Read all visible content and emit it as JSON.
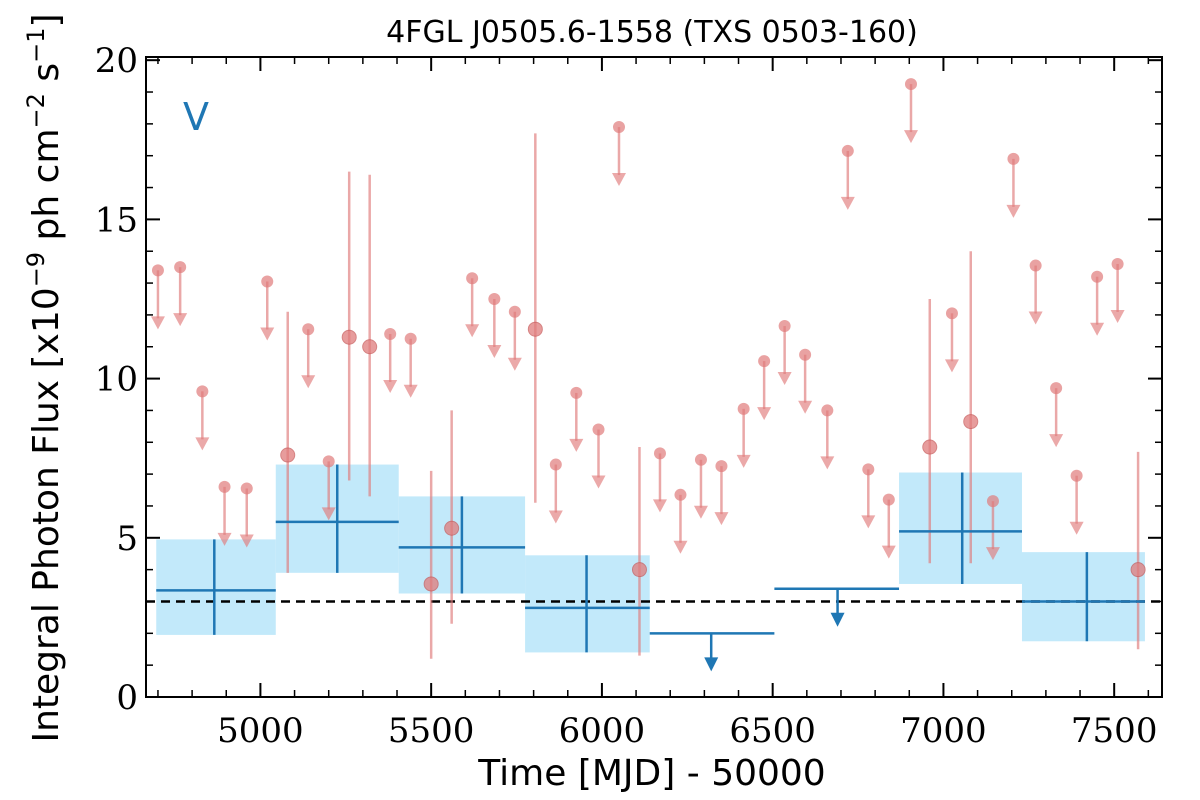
{
  "chart_data": {
    "type": "scatter",
    "title": "4FGL J0505.6-1558 (TXS 0503-160)",
    "xlabel": "Time [MJD] - 50000",
    "ylabel": "Integral Photon Flux [x10",
    "ylabel_exp": "−9",
    "ylabel_mid": " ph cm",
    "ylabel_exp2": "−2",
    "ylabel_mid2": " s",
    "ylabel_exp3": "−1",
    "ylabel_end": "]",
    "band_label": "V",
    "xlim": [
      4665,
      7640
    ],
    "ylim": [
      0,
      20.1
    ],
    "xticks": [
      5000,
      5500,
      6000,
      6500,
      7000,
      7500
    ],
    "yticks": [
      0,
      5,
      10,
      15,
      20
    ],
    "baseline": 3.0,
    "colors": {
      "monthly": "#e07b7b",
      "bin": "#1f77b4",
      "bin_fill": "#b3e3f9"
    },
    "series": [
      {
        "kind": "binned_detections",
        "points": [
          {
            "x": 4865,
            "x_lo": 4695,
            "x_hi": 5045,
            "y": 3.35,
            "y_lo": 1.95,
            "y_hi": 4.95
          },
          {
            "x": 5225,
            "x_lo": 5045,
            "x_hi": 5405,
            "y": 5.5,
            "y_lo": 3.9,
            "y_hi": 7.3
          },
          {
            "x": 5590,
            "x_lo": 5405,
            "x_hi": 5775,
            "y": 4.7,
            "y_lo": 3.25,
            "y_hi": 6.3
          },
          {
            "x": 5955,
            "x_lo": 5775,
            "x_hi": 6140,
            "y": 2.8,
            "y_lo": 1.4,
            "y_hi": 4.45
          },
          {
            "x": 7055,
            "x_lo": 6870,
            "x_hi": 7230,
            "y": 5.2,
            "y_lo": 3.55,
            "y_hi": 7.05
          },
          {
            "x": 7420,
            "x_lo": 7230,
            "x_hi": 7590,
            "y": 3.0,
            "y_lo": 1.75,
            "y_hi": 4.55
          }
        ]
      },
      {
        "kind": "binned_upper_limits",
        "points": [
          {
            "x": 6320,
            "x_lo": 6140,
            "x_hi": 6505,
            "y": 2.0
          },
          {
            "x": 6690,
            "x_lo": 6505,
            "x_hi": 6870,
            "y": 3.4
          }
        ]
      },
      {
        "kind": "monthly_detections",
        "points": [
          {
            "x": 5080,
            "y": 7.6,
            "y_lo": 3.9,
            "y_hi": 12.1
          },
          {
            "x": 5260,
            "y": 11.3,
            "y_lo": 6.8,
            "y_hi": 16.5
          },
          {
            "x": 5320,
            "y": 11.0,
            "y_lo": 6.3,
            "y_hi": 16.4
          },
          {
            "x": 5500,
            "y": 3.55,
            "y_lo": 1.2,
            "y_hi": 7.1
          },
          {
            "x": 5560,
            "y": 5.3,
            "y_lo": 2.3,
            "y_hi": 9.0
          },
          {
            "x": 5805,
            "y": 11.55,
            "y_lo": 6.1,
            "y_hi": 17.7
          },
          {
            "x": 6110,
            "y": 4.0,
            "y_lo": 1.3,
            "y_hi": 7.85
          },
          {
            "x": 6960,
            "y": 7.85,
            "y_lo": 4.2,
            "y_hi": 12.5
          },
          {
            "x": 7080,
            "y": 8.65,
            "y_lo": 4.2,
            "y_hi": 14.0
          },
          {
            "x": 7570,
            "y": 4.0,
            "y_lo": 1.5,
            "y_hi": 7.7
          }
        ]
      },
      {
        "kind": "monthly_upper_limits",
        "points": [
          {
            "x": 4700,
            "y": 13.4
          },
          {
            "x": 4765,
            "y": 13.5
          },
          {
            "x": 4830,
            "y": 9.6
          },
          {
            "x": 4895,
            "y": 6.6
          },
          {
            "x": 4960,
            "y": 6.55
          },
          {
            "x": 5020,
            "y": 13.05
          },
          {
            "x": 5140,
            "y": 11.55
          },
          {
            "x": 5200,
            "y": 7.4
          },
          {
            "x": 5380,
            "y": 11.4
          },
          {
            "x": 5440,
            "y": 11.25
          },
          {
            "x": 5620,
            "y": 13.15
          },
          {
            "x": 5685,
            "y": 12.5
          },
          {
            "x": 5745,
            "y": 12.1
          },
          {
            "x": 5865,
            "y": 7.3
          },
          {
            "x": 5925,
            "y": 9.55
          },
          {
            "x": 5990,
            "y": 8.4
          },
          {
            "x": 6050,
            "y": 17.9
          },
          {
            "x": 6170,
            "y": 7.65
          },
          {
            "x": 6230,
            "y": 6.35
          },
          {
            "x": 6290,
            "y": 7.45
          },
          {
            "x": 6350,
            "y": 7.25
          },
          {
            "x": 6415,
            "y": 9.05
          },
          {
            "x": 6475,
            "y": 10.55
          },
          {
            "x": 6535,
            "y": 11.65
          },
          {
            "x": 6595,
            "y": 10.75
          },
          {
            "x": 6660,
            "y": 9.0
          },
          {
            "x": 6720,
            "y": 17.15
          },
          {
            "x": 6780,
            "y": 7.15
          },
          {
            "x": 6840,
            "y": 6.2
          },
          {
            "x": 6905,
            "y": 19.25
          },
          {
            "x": 7025,
            "y": 12.05
          },
          {
            "x": 7145,
            "y": 6.15
          },
          {
            "x": 7205,
            "y": 16.9
          },
          {
            "x": 7270,
            "y": 13.55
          },
          {
            "x": 7330,
            "y": 9.7
          },
          {
            "x": 7390,
            "y": 6.95
          },
          {
            "x": 7450,
            "y": 13.2
          },
          {
            "x": 7510,
            "y": 13.6
          }
        ]
      }
    ]
  }
}
